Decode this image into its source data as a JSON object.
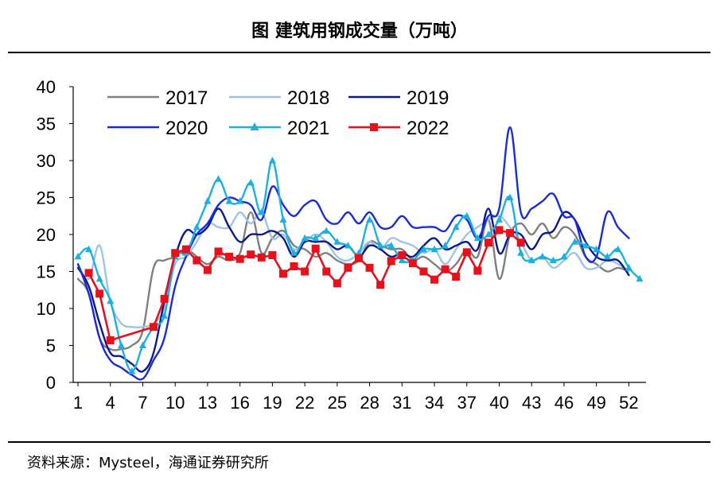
{
  "title": "图  建筑用钢成交量（万吨）",
  "source": "资料来源：Mysteel，海通证券研究所",
  "chart_data": {
    "type": "line",
    "title": "图  建筑用钢成交量（万吨）",
    "xlabel": "",
    "ylabel": "",
    "xlim": [
      1,
      53
    ],
    "ylim": [
      0,
      40
    ],
    "x_ticks": [
      1,
      4,
      7,
      10,
      13,
      16,
      19,
      22,
      25,
      28,
      31,
      34,
      37,
      40,
      43,
      46,
      49,
      52
    ],
    "y_ticks": [
      0,
      5,
      10,
      15,
      20,
      25,
      30,
      35,
      40
    ],
    "legend_position": "top",
    "series": [
      {
        "name": "2017",
        "color": "#808080",
        "marker": "none",
        "x": [
          1,
          2,
          3,
          4,
          5,
          6,
          7,
          8,
          9,
          10,
          11,
          12,
          13,
          14,
          15,
          16,
          17,
          18,
          19,
          20,
          21,
          22,
          23,
          24,
          25,
          26,
          27,
          28,
          29,
          30,
          31,
          32,
          33,
          34,
          35,
          36,
          37,
          38,
          39,
          40,
          41,
          42,
          43,
          44,
          45,
          46,
          47,
          48,
          49,
          50,
          51,
          52
        ],
        "values": [
          14,
          12,
          6,
          4.5,
          4.5,
          5,
          7,
          15.5,
          16.5,
          17,
          18,
          17,
          16,
          17,
          16.5,
          17.5,
          23,
          17.5,
          19.5,
          20.5,
          18.5,
          18,
          17,
          17.5,
          16.5,
          16,
          16.5,
          19,
          18.5,
          18,
          18,
          16.5,
          17,
          16,
          15,
          16,
          18,
          17,
          22,
          14,
          20,
          21.5,
          20,
          21.5,
          19.5,
          21,
          20,
          17,
          16,
          15,
          15.5,
          15
        ]
      },
      {
        "name": "2018",
        "color": "#9DC3E6",
        "marker": "none",
        "x": [
          1,
          2,
          3,
          4,
          5,
          6,
          7,
          8,
          9,
          10,
          11,
          12,
          13,
          14,
          15,
          16,
          17,
          18,
          19,
          20,
          21,
          22,
          23,
          24,
          25,
          26,
          27,
          28,
          29,
          30,
          31,
          32,
          33,
          34,
          35,
          36,
          37,
          38,
          39,
          40,
          41,
          42,
          43,
          44,
          45,
          46,
          47,
          48,
          49,
          50,
          51,
          52
        ],
        "values": [
          16,
          14,
          18.5,
          11,
          8,
          7.5,
          7.5,
          8,
          10,
          16,
          17,
          19,
          21.5,
          21,
          21,
          23,
          21.5,
          23,
          19.5,
          20,
          18,
          19,
          20,
          19,
          17,
          16.5,
          17.5,
          19,
          18,
          19.5,
          19,
          18.5,
          17.5,
          18,
          16,
          18,
          20,
          21,
          22,
          22.5,
          21,
          19,
          16.5,
          17,
          15.5,
          16.5,
          17.5,
          15.5,
          15.5,
          16.5,
          16,
          15
        ]
      },
      {
        "name": "2019",
        "color": "#0A1A8C",
        "marker": "none",
        "x": [
          1,
          2,
          3,
          4,
          5,
          6,
          7,
          8,
          9,
          10,
          11,
          12,
          13,
          14,
          15,
          16,
          17,
          18,
          19,
          20,
          21,
          22,
          23,
          24,
          25,
          26,
          27,
          28,
          29,
          30,
          31,
          32,
          33,
          34,
          35,
          36,
          37,
          38,
          39,
          40,
          41,
          42,
          43,
          44,
          45,
          46,
          47,
          48,
          49,
          50,
          51,
          52
        ],
        "values": [
          15.5,
          13,
          8,
          4,
          3.5,
          2.5,
          1.5,
          4,
          11,
          17,
          20.5,
          20,
          21,
          23.5,
          21,
          19,
          20,
          20,
          20.5,
          19.5,
          17,
          19,
          19,
          19,
          18,
          18.5,
          17,
          18.5,
          18,
          17,
          17.5,
          17,
          18.5,
          19.5,
          18,
          18.5,
          19,
          18,
          23.5,
          17.5,
          20,
          20,
          18,
          20,
          20.5,
          23,
          22,
          19,
          17,
          16.5,
          16.5,
          14.5
        ]
      },
      {
        "name": "2020",
        "color": "#1A2CD8",
        "marker": "none",
        "x": [
          1,
          2,
          3,
          4,
          5,
          6,
          7,
          8,
          9,
          10,
          11,
          12,
          13,
          14,
          15,
          16,
          17,
          18,
          19,
          20,
          21,
          22,
          23,
          24,
          25,
          26,
          27,
          28,
          29,
          30,
          31,
          32,
          33,
          34,
          35,
          36,
          37,
          38,
          39,
          40,
          41,
          42,
          43,
          44,
          45,
          46,
          47,
          48,
          49,
          50,
          51,
          52
        ],
        "values": [
          16,
          12,
          6,
          3,
          2,
          1,
          0.5,
          3,
          6,
          13,
          17,
          20,
          21.5,
          24,
          25,
          24.5,
          24,
          22,
          26.5,
          24,
          22.5,
          24,
          24.5,
          22,
          21.5,
          23,
          21.5,
          23,
          21,
          21,
          22.5,
          21,
          21,
          21,
          20.5,
          22.5,
          22,
          19.5,
          22.5,
          23.5,
          34.5,
          23,
          23.5,
          24.5,
          25.5,
          22.5,
          22,
          17,
          17,
          23,
          21,
          19.5
        ]
      },
      {
        "name": "2021",
        "color": "#1CB0E0",
        "marker": "triangle",
        "x": [
          1,
          2,
          3,
          4,
          5,
          6,
          7,
          8,
          9,
          10,
          11,
          12,
          13,
          14,
          15,
          16,
          17,
          18,
          19,
          20,
          21,
          22,
          23,
          24,
          25,
          26,
          27,
          28,
          29,
          30,
          31,
          32,
          33,
          34,
          35,
          36,
          37,
          38,
          39,
          40,
          41,
          42,
          43,
          44,
          45,
          46,
          47,
          48,
          49,
          50,
          51,
          52,
          53
        ],
        "values": [
          17,
          18,
          14,
          11,
          5,
          1.5,
          5,
          7.5,
          9,
          17,
          17.5,
          21,
          24.5,
          27.5,
          24.5,
          24.5,
          27,
          23,
          30,
          22,
          17.5,
          19.5,
          19.5,
          20.5,
          19,
          18.5,
          17.5,
          22,
          18.5,
          18.5,
          16.5,
          16.5,
          18,
          18,
          18.5,
          21,
          22.5,
          19.5,
          20,
          22,
          25,
          17.5,
          16.5,
          17,
          16.5,
          17,
          19,
          18.5,
          18,
          17,
          18,
          15.5,
          14
        ]
      },
      {
        "name": "2022",
        "color": "#E8101A",
        "marker": "square",
        "x": [
          2,
          3,
          4,
          8,
          9,
          10,
          11,
          12,
          13,
          14,
          15,
          16,
          17,
          18,
          19,
          20,
          21,
          22,
          23,
          24,
          25,
          26,
          27,
          28,
          29,
          30,
          31,
          32,
          33,
          34,
          35,
          36,
          37,
          38,
          39,
          40,
          41,
          42
        ],
        "values": [
          14.8,
          12,
          5.7,
          7.5,
          11.3,
          17.5,
          18,
          16.5,
          15.2,
          17.7,
          17,
          16.7,
          17.3,
          16.9,
          17.2,
          14.7,
          15.7,
          15,
          18.1,
          15,
          13.4,
          15.5,
          16.8,
          15.5,
          13.2,
          16.4,
          17.2,
          16.1,
          15,
          13.9,
          15.3,
          14.3,
          17.6,
          15.1,
          18.9,
          20.6,
          20.2,
          18.9
        ]
      }
    ]
  }
}
